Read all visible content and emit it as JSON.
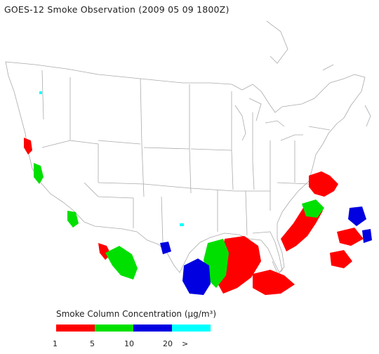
{
  "title": "GOES-12 Smoke Observation (2009 05 09  1800Z)",
  "legend": {
    "title": "Smoke Column Concentration (µg/m³)",
    "bins": [
      {
        "color": "#ff0000",
        "label": "1"
      },
      {
        "color": "#00e000",
        "label": "5"
      },
      {
        "color": "#0000e0",
        "label": "10"
      },
      {
        "color": "#00ffff",
        "label": "20"
      }
    ],
    "overflow_label": ">"
  },
  "colors": {
    "outline": "#aaaaaa",
    "red": "#ff0000",
    "green": "#00e000",
    "blue": "#0000e0",
    "cyan": "#00ffff"
  }
}
